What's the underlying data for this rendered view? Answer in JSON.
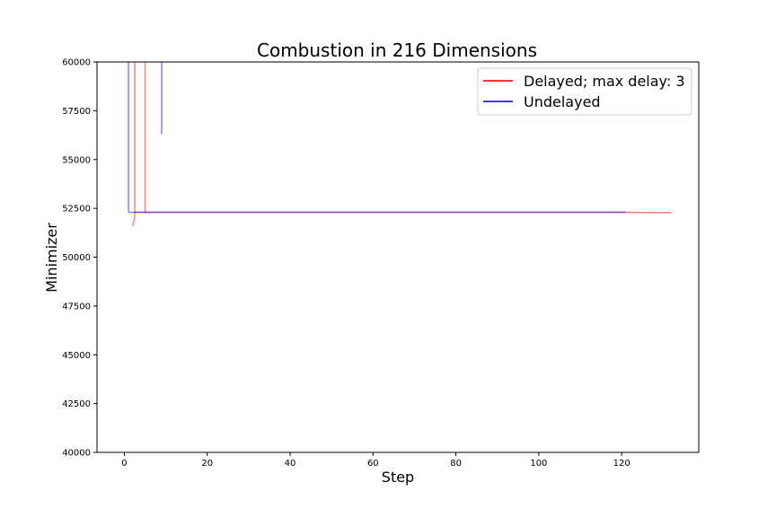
{
  "chart_data": {
    "type": "line",
    "title": "Combustion in 216 Dimensions",
    "xlabel": "Step",
    "ylabel": "Minimizer",
    "xlim": [
      -6.6,
      138.6
    ],
    "ylim": [
      40000,
      60000
    ],
    "xticks": [
      0,
      20,
      40,
      60,
      80,
      100,
      120
    ],
    "yticks": [
      40000,
      42500,
      45000,
      47500,
      50000,
      52500,
      55000,
      57500,
      60000
    ],
    "grid": false,
    "legend_position": "top-right",
    "series": [
      {
        "name": "Delayed; max delay: 3",
        "color": "#ff0000",
        "legend_color": "#e83a3a",
        "opacity": 0.5,
        "segments": [
          {
            "x": [
              2,
              2.5,
              2.5
            ],
            "y": [
              51600,
              52000,
              60000
            ]
          },
          {
            "x": [
              2.5,
              5,
              5
            ],
            "y": [
              52300,
              52300,
              60000
            ]
          },
          {
            "x": [
              5,
              121,
              129,
              132
            ],
            "y": [
              52300,
              52300,
              52290,
              52280
            ]
          }
        ]
      },
      {
        "name": "Undelayed",
        "color": "#0000ff",
        "legend_color": "#3a3ae8",
        "opacity": 0.5,
        "segments": [
          {
            "x": [
              1,
              1,
              2,
              121
            ],
            "y": [
              60000,
              52300,
              52300,
              52300
            ]
          },
          {
            "x": [
              9,
              9
            ],
            "y": [
              56300,
              60000
            ]
          }
        ]
      }
    ]
  }
}
